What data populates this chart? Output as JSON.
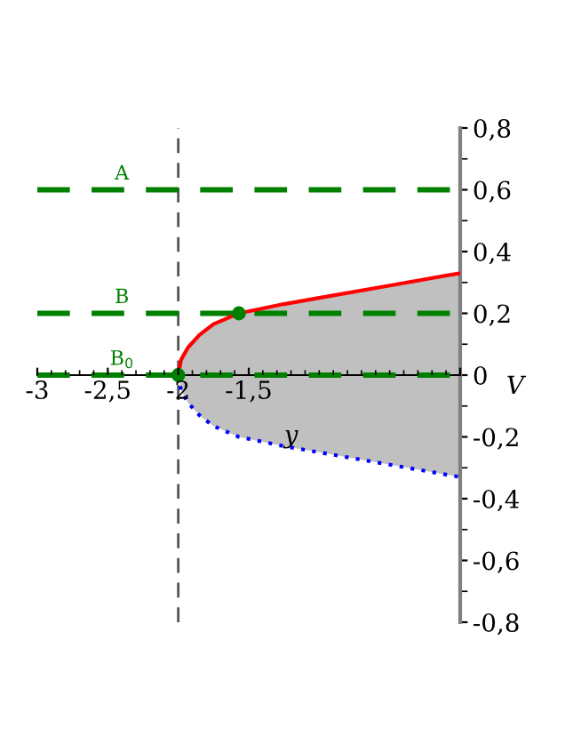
{
  "chart_data": {
    "type": "line",
    "xlabel": "y",
    "ylabel": "V",
    "x": [
      -2,
      -1.98,
      -1.93,
      -1.85,
      -1.75,
      -1.57,
      -1.25,
      -1,
      -0.5,
      0
    ],
    "series": [
      {
        "color": "#c0c0c0",
        "line_style": "solid",
        "values": [
          null,
          null,
          null,
          null,
          null,
          null,
          null,
          null,
          null,
          null
        ],
        "lower": [
          0,
          -0.05,
          -0.09,
          -0.13,
          -0.165,
          -0.2,
          -0.23,
          -0.25,
          -0.29,
          -0.33
        ],
        "upper": [
          0,
          0.05,
          0.09,
          0.13,
          0.165,
          0.2,
          0.23,
          0.25,
          0.29,
          0.33
        ]
      },
      {
        "color": "#ff0000",
        "line_style": "solid",
        "values": [
          0,
          0.05,
          0.09,
          0.13,
          0.165,
          0.2,
          0.23,
          0.25,
          0.29,
          0.33
        ]
      },
      {
        "color": "#0000ff",
        "line_style": "dotted",
        "values": [
          0,
          -0.05,
          -0.09,
          -0.13,
          -0.165,
          -0.2,
          -0.23,
          -0.25,
          -0.29,
          -0.33
        ]
      },
      {
        "type": "scatter",
        "color": "#008000",
        "marker": "circle",
        "x": [
          -2,
          -1.57
        ],
        "values": [
          0,
          0.2
        ]
      }
    ],
    "ref_lines": [
      {
        "axis": "y",
        "value": 0.6,
        "label": "A",
        "color": "#008000",
        "line_style": "dashed"
      },
      {
        "axis": "y",
        "value": 0.2,
        "label": "B",
        "color": "#008000",
        "line_style": "dashed"
      },
      {
        "axis": "y",
        "value": 0,
        "label": "B$_{0}$",
        "color": "#008000",
        "line_style": "dashed"
      },
      {
        "axis": "x",
        "value": -2,
        "label": null,
        "color": "#555555",
        "line_style": "dashed"
      }
    ],
    "xlim": [
      -3,
      0
    ],
    "ylim": [
      -0.8,
      0.8
    ],
    "xticks": [
      {
        "value": -3,
        "label": "-3"
      },
      {
        "value": -2.5,
        "label": "-2,5"
      },
      {
        "value": -2,
        "label": "-2"
      },
      {
        "value": -1.5,
        "label": "-1,5"
      },
      {
        "value": 0,
        "label": null
      }
    ],
    "yticks": [
      {
        "value": -0.8,
        "label": "-0,8"
      },
      {
        "value": -0.6,
        "label": "-0,6"
      },
      {
        "value": -0.4,
        "label": "-0,4"
      },
      {
        "value": -0.2,
        "label": "-0,2"
      },
      0,
      {
        "value": 0.2,
        "label": "0,2"
      },
      {
        "value": 0.4,
        "label": "0,4"
      },
      {
        "value": 0.6,
        "label": "0,6"
      },
      {
        "value": 0.8,
        "label": "0,8"
      }
    ],
    "grid": false,
    "legend": false
  }
}
